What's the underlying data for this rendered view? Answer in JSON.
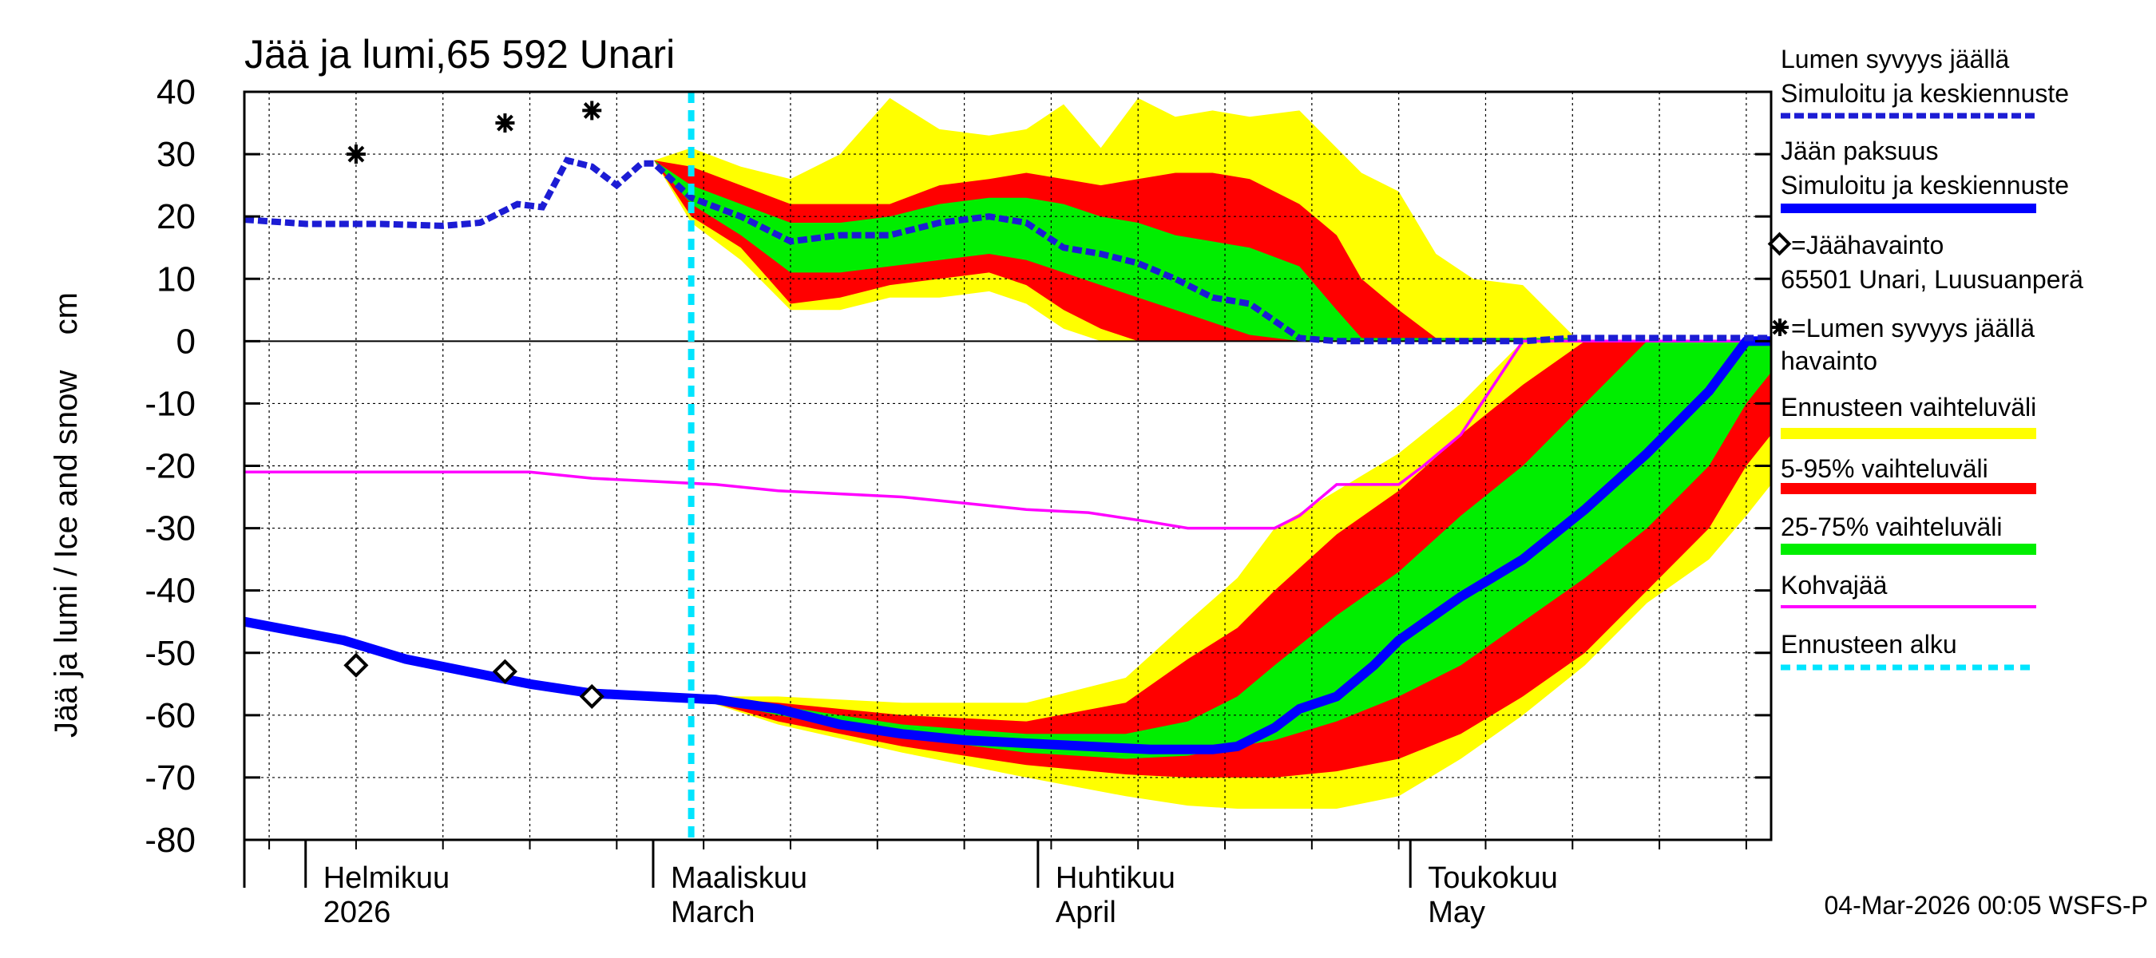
{
  "chart_data": {
    "type": "area",
    "title": "Jää ja lumi,65 592 Unari",
    "ylabel": "Jää ja lumi / Ice and snow    cm",
    "xlabel": "",
    "ylim": [
      -80,
      40
    ],
    "yticks": [
      40,
      30,
      20,
      10,
      0,
      -10,
      -20,
      -30,
      -40,
      -50,
      -60,
      -70,
      -80
    ],
    "xlim_days": [
      -33,
      90
    ],
    "x_unit": "days from 2026-03-01",
    "month_labels": [
      {
        "day": -28,
        "fi": "Helmikuu",
        "en": "2026"
      },
      {
        "day": 0,
        "fi": "Maaliskuu",
        "en": "March"
      },
      {
        "day": 31,
        "fi": "Huhtikuu",
        "en": "April"
      },
      {
        "day": 61,
        "fi": "Toukokuu",
        "en": "May"
      }
    ],
    "grid": true,
    "forecast_start_day": 3,
    "footer": "04-Mar-2026 00:05 WSFS-P",
    "snow_median": {
      "x": [
        -33,
        -28,
        -22,
        -17,
        -14,
        -11,
        -9,
        -7,
        -5,
        -3,
        -1,
        0,
        3,
        7,
        11,
        15,
        19,
        23,
        27,
        30,
        33,
        36,
        39,
        42,
        45,
        48,
        52,
        55,
        57,
        60,
        63,
        66,
        70,
        74,
        90
      ],
      "y": [
        19.5,
        18.8,
        18.8,
        18.5,
        19,
        22,
        21.5,
        29,
        28,
        25,
        28.5,
        28.5,
        23,
        20,
        16,
        17,
        17,
        19,
        20,
        19,
        15,
        14,
        12.5,
        10,
        7,
        6,
        0.5,
        0,
        0,
        0,
        0,
        0,
        0,
        0.5,
        0.5
      ]
    },
    "snow_bands": {
      "x": [
        0,
        3,
        7,
        11,
        15,
        19,
        23,
        27,
        30,
        33,
        36,
        39,
        42,
        45,
        48,
        52,
        55,
        57,
        60,
        63,
        66,
        70,
        74
      ],
      "p95": [
        29,
        28,
        25,
        22,
        22,
        22,
        25,
        26,
        27,
        26,
        25,
        26,
        27,
        27,
        26,
        22,
        17,
        10,
        5,
        0.5,
        0.5,
        0.5,
        0.5
      ],
      "p75": [
        29,
        25,
        22,
        19,
        19,
        20,
        22,
        23,
        23,
        22,
        20,
        19,
        17,
        16,
        15,
        12,
        5,
        0.5,
        0.5,
        0.5,
        0.5,
        0.5,
        0.5
      ],
      "p25": [
        29,
        22,
        17,
        11,
        11,
        12,
        13,
        14,
        13,
        11,
        9,
        7,
        5,
        3,
        1,
        0,
        0,
        0,
        0,
        0,
        0,
        0,
        0
      ],
      "p5": [
        29,
        20,
        15,
        6,
        7,
        9,
        10,
        11,
        9,
        5,
        2,
        0,
        0,
        0,
        0,
        0,
        0,
        0,
        0,
        0,
        0,
        0,
        0
      ],
      "max": [
        29,
        31,
        28,
        26,
        30,
        39,
        34,
        33,
        34,
        38,
        31,
        39,
        36,
        37,
        36,
        37,
        31,
        27,
        24,
        14,
        10,
        9,
        1
      ],
      "min": [
        29,
        19,
        13,
        5,
        5,
        7,
        7,
        8,
        6,
        2,
        0,
        0,
        0,
        0,
        0,
        0,
        0,
        0,
        0,
        0,
        0,
        0,
        0
      ]
    },
    "ice_median": {
      "x": [
        -33,
        -25,
        -20,
        -15,
        -10,
        -5,
        0,
        5,
        10,
        15,
        20,
        25,
        30,
        35,
        40,
        45,
        47,
        50,
        52,
        55,
        58,
        60,
        65,
        70,
        75,
        80,
        85,
        88,
        90
      ],
      "y": [
        -45,
        -48,
        -51,
        -53,
        -55,
        -56.5,
        -57,
        -57.5,
        -59,
        -61.5,
        -63,
        -64,
        -64.5,
        -65,
        -65.5,
        -65.5,
        -65,
        -62,
        -59,
        -57,
        -52,
        -48,
        -41,
        -35,
        -27,
        -18,
        -8,
        0,
        0
      ]
    },
    "ice_bands": {
      "x": [
        3,
        10,
        20,
        30,
        38,
        43,
        47,
        50,
        55,
        60,
        65,
        70,
        75,
        80,
        85,
        88,
        90
      ],
      "p95": [
        -57,
        -58,
        -60,
        -61,
        -58,
        -51,
        -46,
        -40,
        -31,
        -24,
        -15,
        -7,
        0,
        0,
        0,
        0,
        0
      ],
      "p75": [
        -57,
        -58.5,
        -61.5,
        -63,
        -63,
        -61,
        -57,
        -52,
        -44,
        -37,
        -28,
        -20,
        -10,
        0,
        0,
        0,
        0
      ],
      "p25": [
        -57,
        -60,
        -63.5,
        -66,
        -67,
        -66.5,
        -65,
        -64,
        -61,
        -57,
        -52,
        -45,
        -38,
        -30,
        -20,
        -10,
        -5
      ],
      "p5": [
        -57,
        -61,
        -65,
        -68,
        -69.5,
        -70,
        -70,
        -70,
        -69,
        -67,
        -63,
        -57,
        -50,
        -40,
        -30,
        -20,
        -15
      ],
      "max": [
        -57,
        -57,
        -58,
        -58,
        -54,
        -45,
        -38,
        -30,
        -24,
        -18,
        -10,
        0,
        0,
        0,
        0,
        0,
        0
      ],
      "min": [
        -57,
        -61.5,
        -66,
        -70,
        -73,
        -74.5,
        -75,
        -75,
        -75,
        -73,
        -67,
        -60,
        -52,
        -42,
        -35,
        -28,
        -23
      ]
    },
    "slush_ice": {
      "x": [
        -33,
        -15,
        -10,
        -5,
        0,
        5,
        10,
        15,
        20,
        25,
        30,
        35,
        40,
        43,
        48,
        50,
        52,
        55,
        60,
        62,
        65,
        70,
        90
      ],
      "y": [
        -21,
        -21,
        -21,
        -22,
        -22.5,
        -23,
        -24,
        -24.5,
        -25,
        -26,
        -27,
        -27.5,
        -29,
        -30,
        -30,
        -30,
        -28,
        -23,
        -23,
        -20,
        -15,
        0,
        0
      ]
    },
    "ice_observations": {
      "x": [
        -24,
        -12,
        -5
      ],
      "y": [
        -52,
        -53,
        -57
      ]
    },
    "snow_observations": {
      "x": [
        -24,
        -12,
        -5
      ],
      "y": [
        30,
        35,
        37
      ]
    },
    "legend": {
      "snow_title": "Lumen syvyys jäällä",
      "snow_sub": "Simuloitu ja keskiennuste",
      "ice_title": "Jään paksuus",
      "ice_sub": "Simuloitu ja keskiennuste",
      "ice_obs_1": "=Jäähavainto",
      "ice_obs_2": "65501 Unari, Luusuanperä",
      "snow_obs_1": "=Lumen syvyys jäällä",
      "snow_obs_2": "havainto",
      "range_label": "Ennusteen vaihteluväli",
      "p5_95_label": "5-95% vaihteluväli",
      "p25_75_label": "25-75% vaihteluväli",
      "slush_label": "Kohvajää",
      "fc_start_label": "Ennusteen alku"
    },
    "colors": {
      "yellow": "#ffff00",
      "red": "#ff0000",
      "green": "#00ee00",
      "blue": "#0000ff",
      "snow_blue": "#1c1cd4",
      "magenta": "#ff00ff",
      "cyan": "#00e5ff",
      "grid": "#000000"
    }
  }
}
